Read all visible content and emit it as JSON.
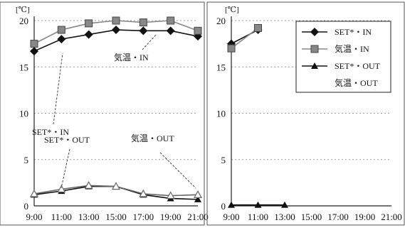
{
  "chart_data": [
    {
      "type": "line",
      "unit_label": "[℃]",
      "x": [
        "9:00",
        "11:00",
        "13:00",
        "15:00",
        "17:00",
        "19:00",
        "21:00"
      ],
      "ylim": [
        0,
        20
      ],
      "yticks": [
        0,
        5,
        10,
        15,
        20
      ],
      "grid": "horizontal dashed",
      "series": [
        {
          "name": "SET*・IN",
          "marker": "diamond",
          "color": "#111111",
          "values": [
            16.7,
            18.0,
            18.5,
            19.0,
            18.9,
            18.9,
            18.3
          ]
        },
        {
          "name": "気温・IN",
          "marker": "square",
          "color": "#888888",
          "values": [
            17.5,
            19.0,
            19.7,
            20.0,
            19.8,
            20.0,
            18.9
          ]
        },
        {
          "name": "SET*・OUT",
          "marker": "triangle",
          "color": "#111111",
          "values": [
            1.2,
            1.6,
            2.1,
            2.1,
            1.2,
            0.8,
            0.7
          ]
        },
        {
          "name": "気温・OUT",
          "marker": "triangle-open",
          "color": "#666666",
          "values": [
            1.3,
            1.8,
            2.2,
            2.1,
            1.3,
            1.1,
            1.2
          ]
        }
      ],
      "annotations": [
        {
          "text": "SET*・IN"
        },
        {
          "text": "気温・IN"
        },
        {
          "text": "SET*・OUT"
        },
        {
          "text": "気温・OUT"
        }
      ]
    },
    {
      "type": "line",
      "unit_label": "[℃]",
      "x": [
        "9:00",
        "11:00",
        "13:00",
        "15:00",
        "17:00",
        "19:00",
        "21:00"
      ],
      "ylim": [
        0,
        20
      ],
      "yticks": [
        0,
        5,
        10,
        15,
        20
      ],
      "grid": "horizontal dashed",
      "legend": "top-right",
      "series": [
        {
          "name": "SET*・IN",
          "marker": "diamond",
          "color": "#111111",
          "values": [
            17.5,
            19.0,
            null,
            null,
            null,
            null,
            null
          ]
        },
        {
          "name": "気温・IN",
          "marker": "square",
          "color": "#888888",
          "values": [
            17.0,
            19.2,
            null,
            null,
            null,
            null,
            null
          ]
        },
        {
          "name": "SET*・OUT",
          "marker": "triangle",
          "color": "#111111",
          "values": [
            0.1,
            0.1,
            0.1,
            null,
            null,
            null,
            null
          ]
        },
        {
          "name": "気温・OUT",
          "marker": "none",
          "color": "#666666",
          "values": [
            null,
            null,
            null,
            null,
            null,
            null,
            null
          ]
        }
      ]
    }
  ]
}
